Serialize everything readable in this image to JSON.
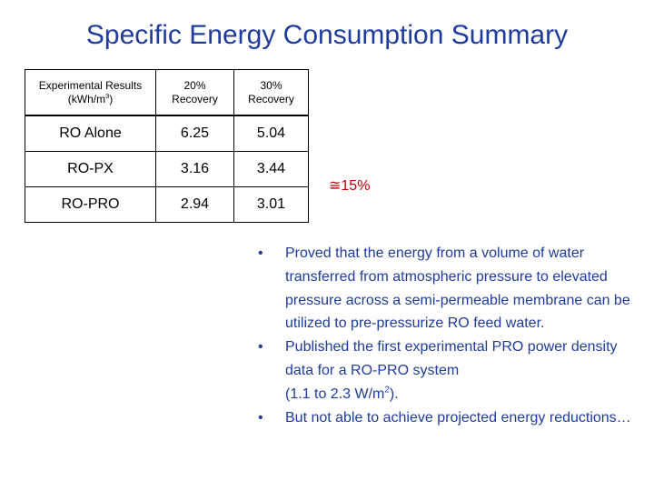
{
  "title": "Specific Energy Consumption Summary",
  "table": {
    "header": {
      "label_line1": "Experimental Results",
      "label_unit": "(kWh/m",
      "label_sup": "3",
      "label_close": ")",
      "col1_line1": "20%",
      "col1_line2": "Recovery",
      "col2_line1": "30%",
      "col2_line2": "Recovery"
    },
    "rows": [
      {
        "label": "RO Alone",
        "v20": "6.25",
        "v30": "5.04"
      },
      {
        "label": "RO-PX",
        "v20": "3.16",
        "v30": "3.44"
      },
      {
        "label": "RO-PRO",
        "v20": "2.94",
        "v30": "3.01"
      }
    ]
  },
  "annotation": "≅15%",
  "bullets": {
    "bullet_char": "•",
    "b1": "Proved that the energy from a volume of water transferred from atmospheric pressure to elevated pressure across a semi-permeable membrane can be utilized to pre-pressurize RO feed water.",
    "b2_text": "Published the first experimental PRO power density data for a RO-PRO system",
    "b2_range": "(1.1 to 2.3 W/m",
    "b2_sup": "2",
    "b2_close": ").",
    "b3": "But not able to achieve projected energy reductions…"
  },
  "colors": {
    "title": "#1f3c9c",
    "bullets": "#1f3c9c",
    "annotation": "#c00000"
  }
}
